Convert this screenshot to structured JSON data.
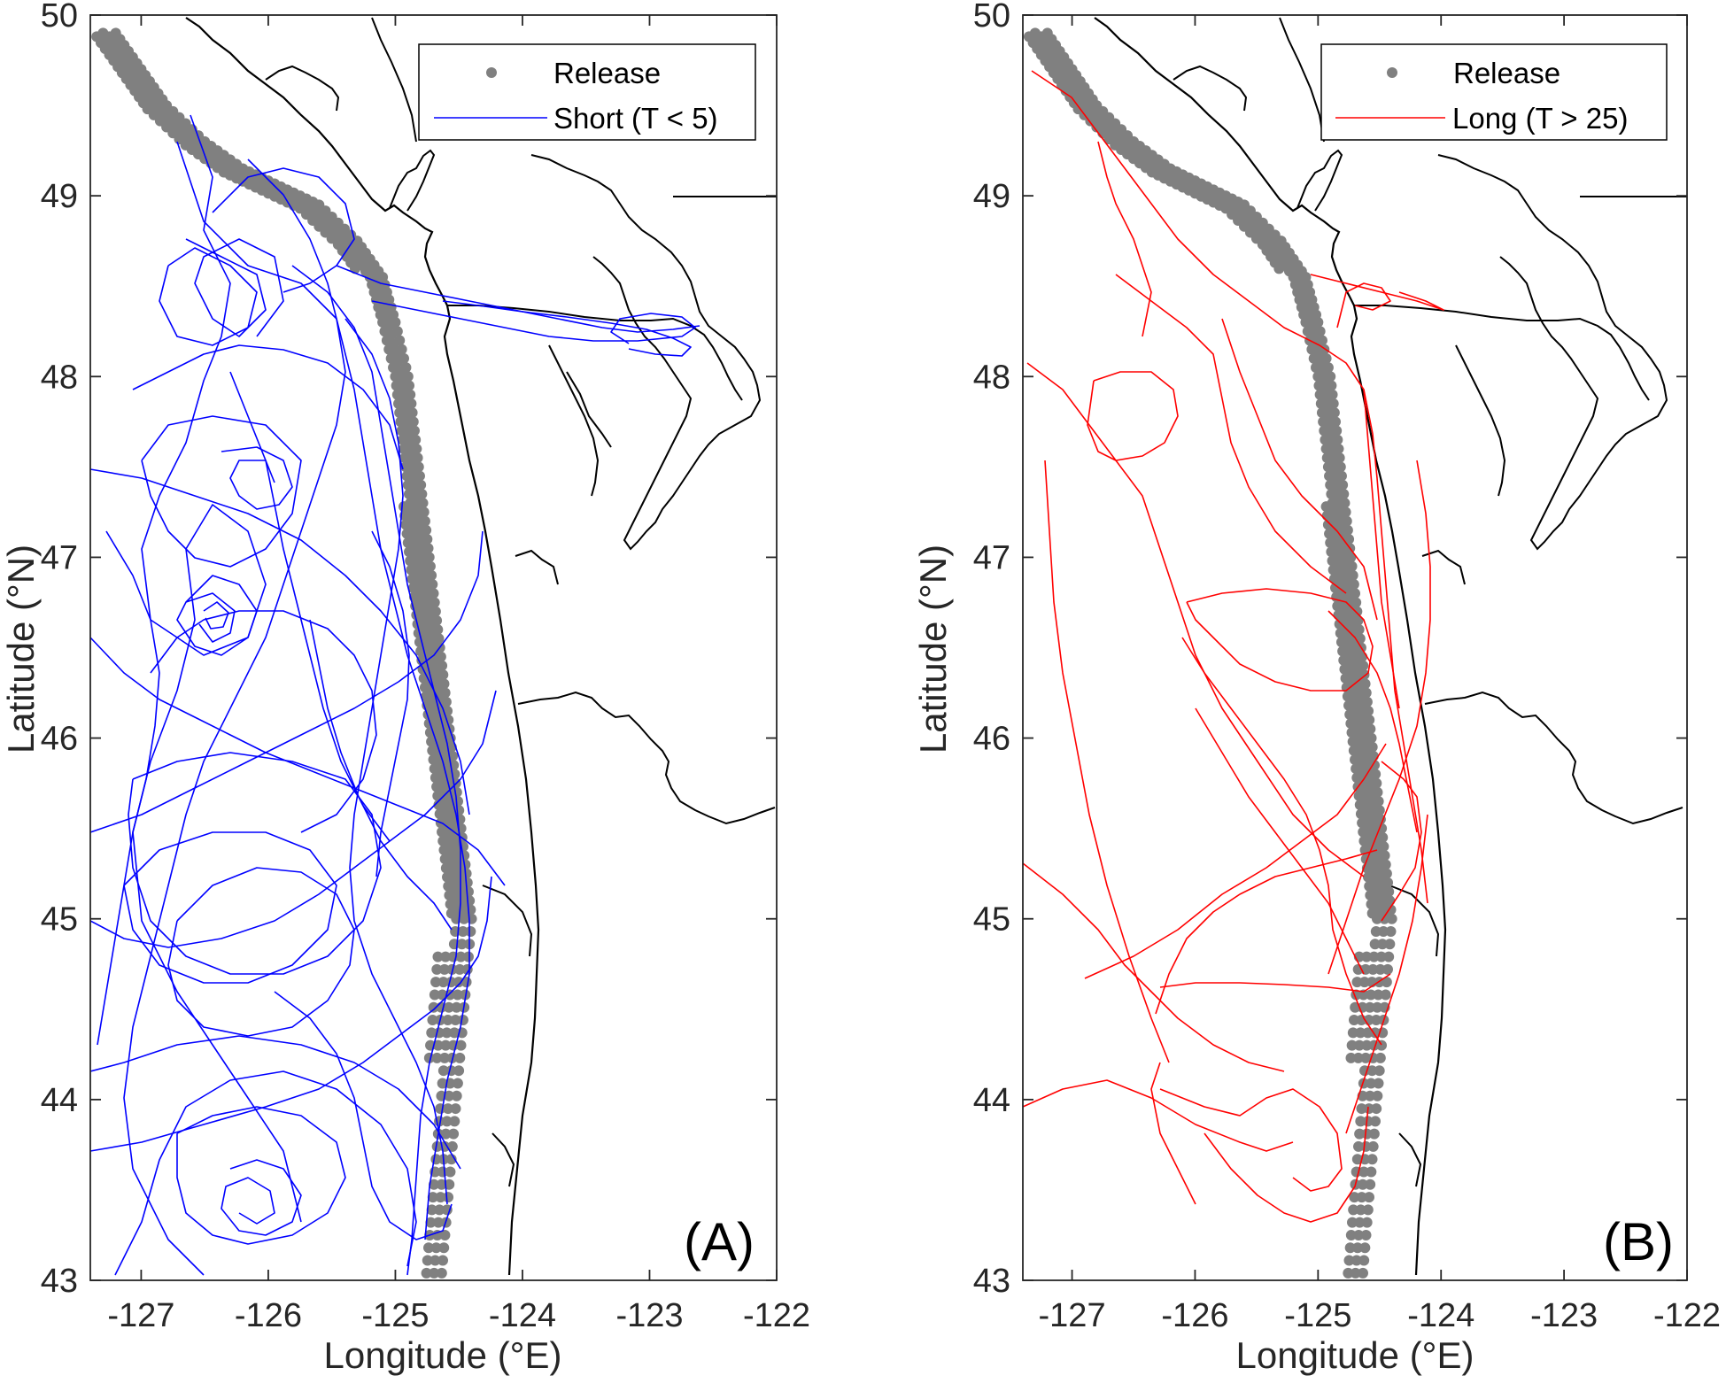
{
  "chart_data": [
    {
      "type": "line",
      "panel_label": "(A)",
      "xlabel": "Longitude (°E)",
      "ylabel": "Latitude (°N)",
      "xlim": [
        -127.4,
        -122
      ],
      "ylim": [
        43,
        50
      ],
      "x_ticks": [
        -127,
        -126,
        -125,
        -124,
        -123,
        -122
      ],
      "x_tick_labels": [
        "-127",
        "-126",
        "-125",
        "-124",
        "-123",
        "-122"
      ],
      "y_ticks": [
        43,
        44,
        45,
        46,
        47,
        48,
        49,
        50
      ],
      "y_tick_labels": [
        "43",
        "44",
        "45",
        "46",
        "47",
        "48",
        "49",
        "50"
      ],
      "legend_position": "top-right",
      "legend": [
        "Release",
        "Short (T < 5)"
      ],
      "colors": {
        "release": "#808080",
        "track": "#0000ff",
        "coast": "#000000"
      },
      "series": [
        {
          "name": "Release",
          "marker": "dot",
          "x": [
            -127.2,
            -127.0,
            -126.8,
            -126.5,
            -126.2,
            -125.9,
            -125.6,
            -125.3,
            -125.1,
            -125.0,
            -124.9,
            -124.85,
            -124.8,
            -124.75,
            -124.7,
            -124.65,
            -124.6,
            -124.55,
            -124.5,
            -124.45,
            -124.4
          ],
          "y": [
            49.9,
            49.7,
            49.5,
            49.3,
            49.15,
            49.05,
            48.95,
            48.75,
            48.55,
            48.3,
            48.0,
            47.7,
            47.4,
            47.1,
            46.8,
            46.5,
            46.2,
            45.9,
            45.6,
            45.3,
            45.0
          ]
        },
        {
          "name": "Short (T < 5)",
          "x": [
            -126.8,
            -126.5,
            -126.9,
            -127.0,
            -126.6,
            -126.3,
            -126.1,
            -126.3
          ],
          "y": [
            49.3,
            48.7,
            48.2,
            47.5,
            46.8,
            46.2,
            45.5,
            44.5
          ]
        }
      ]
    },
    {
      "type": "line",
      "panel_label": "(B)",
      "xlabel": "Longitude (°E)",
      "ylabel": "Latitude (°N)",
      "xlim": [
        -127.4,
        -122
      ],
      "ylim": [
        43,
        50
      ],
      "x_ticks": [
        -127,
        -126,
        -125,
        -124,
        -123,
        -122
      ],
      "x_tick_labels": [
        "-127",
        "-126",
        "-125",
        "-124",
        "-123",
        "-122"
      ],
      "y_ticks": [
        43,
        44,
        45,
        46,
        47,
        48,
        49,
        50
      ],
      "y_tick_labels": [
        "43",
        "44",
        "45",
        "46",
        "47",
        "48",
        "49",
        "50"
      ],
      "legend_position": "top-right",
      "legend": [
        "Release",
        "Long (T > 25)"
      ],
      "colors": {
        "release": "#808080",
        "track": "#ff0000",
        "coast": "#000000"
      },
      "series": [
        {
          "name": "Release",
          "marker": "dot",
          "x": [
            -127.2,
            -127.0,
            -126.8,
            -126.5,
            -126.2,
            -125.9,
            -125.6,
            -125.3,
            -125.1,
            -125.0,
            -124.9,
            -124.85,
            -124.8,
            -124.75,
            -124.7,
            -124.65,
            -124.6,
            -124.55,
            -124.5,
            -124.45,
            -124.4
          ],
          "y": [
            49.9,
            49.7,
            49.5,
            49.3,
            49.15,
            49.05,
            48.95,
            48.75,
            48.55,
            48.3,
            48.0,
            47.7,
            47.4,
            47.1,
            46.8,
            46.5,
            46.2,
            45.9,
            45.6,
            45.3,
            45.0
          ]
        },
        {
          "name": "Long (T > 25)",
          "x": [
            -127.3,
            -126.8,
            -126.2,
            -125.6,
            -125.2,
            -124.9,
            -124.6,
            -124.3
          ],
          "y": [
            49.7,
            48.9,
            48.2,
            47.6,
            47.0,
            46.4,
            45.6,
            44.8
          ]
        }
      ]
    }
  ]
}
